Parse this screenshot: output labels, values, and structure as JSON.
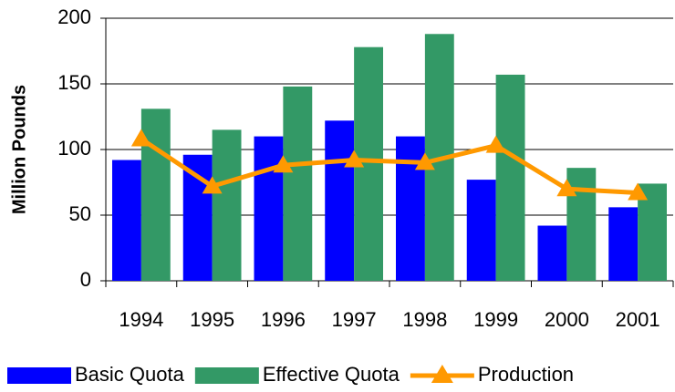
{
  "chart_data": {
    "type": "bar-line",
    "y_label": "Million Pounds",
    "categories": [
      "1994",
      "1995",
      "1996",
      "1997",
      "1998",
      "1999",
      "2000",
      "2001"
    ],
    "series": [
      {
        "name": "Basic Quota",
        "type": "bar",
        "color": "#0000ff",
        "values": [
          92,
          96,
          110,
          122,
          110,
          77,
          42,
          56
        ]
      },
      {
        "name": "Effective Quota",
        "type": "bar",
        "color": "#339966",
        "values": [
          131,
          115,
          148,
          178,
          188,
          157,
          86,
          74
        ]
      },
      {
        "name": "Production",
        "type": "line",
        "color": "#ff9900",
        "values": [
          108,
          72,
          88,
          92,
          90,
          103,
          70,
          67
        ]
      }
    ],
    "ylim": [
      0,
      200
    ],
    "yticks": [
      0,
      50,
      100,
      150,
      200
    ],
    "grid": true,
    "legend": "bottom"
  }
}
